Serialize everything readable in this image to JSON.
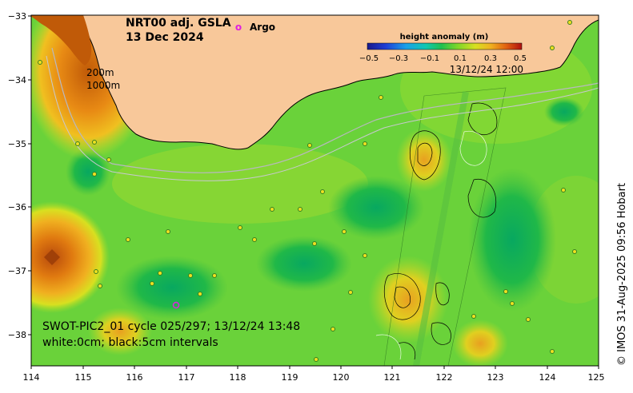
{
  "map": {
    "title_line1": "NRT00 adj. GSLA",
    "title_line2": "13 Dec 2024",
    "argo_marker": "o",
    "argo_label": "Argo",
    "depth_label_1": "200m",
    "depth_label_2": "1000m",
    "footer_line1": "SWOT-PIC2_01 cycle 025/297; 13/12/24 13:48",
    "footer_line2": "white:0cm; black:5cm intervals",
    "credit": "© IMOS 31-Aug-2025 09:56 Hobart",
    "colors": {
      "land": "#f8c89a",
      "ocean_mid": "#6ad23a",
      "ocean_high": "#e07a10",
      "ocean_low": "#0aa860"
    }
  },
  "colorbar": {
    "title": "height anomaly (m)",
    "timestamp": "13/12/24 12:00",
    "tick_labels": [
      "−0.5",
      "−0.3",
      "−0.1",
      "0.1",
      "0.3",
      "0.5"
    ],
    "stops": [
      "#1a1a8c",
      "#1f3fd6",
      "#1aa0e8",
      "#10c8b0",
      "#20c050",
      "#7ad62a",
      "#d8e020",
      "#f0b020",
      "#e06010",
      "#b01010"
    ]
  },
  "axes": {
    "x_labels": [
      "114",
      "115",
      "116",
      "117",
      "118",
      "119",
      "120",
      "121",
      "122",
      "123",
      "124",
      "125"
    ],
    "y_labels": [
      "−33",
      "−34",
      "−35",
      "−36",
      "−37",
      "−38"
    ]
  }
}
